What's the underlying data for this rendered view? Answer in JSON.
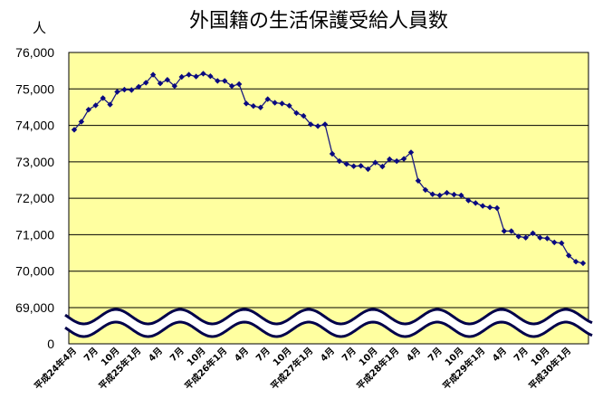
{
  "chart_data": {
    "type": "line",
    "title": "外国籍の生活保護受給人員数",
    "unit_label": "人",
    "y_tick_labels": [
      "76,000",
      "75,000",
      "74,000",
      "73,000",
      "72,000",
      "71,000",
      "70,000",
      "69,000",
      "0"
    ],
    "ylim": [
      69000,
      76000
    ],
    "axis_break": true,
    "grid": true,
    "legend": "none",
    "colors": {
      "plot_bg": "#ffffa0",
      "line": "#1a1a80",
      "marker": "#0a0a80",
      "grid": "#000000",
      "break_wave": "#00004a"
    },
    "x_tick_labels": [
      "平成24年4月",
      "7月",
      "10月",
      "平成25年1月",
      "4月",
      "7月",
      "10月",
      "平成26年1月",
      "4月",
      "7月",
      "10月",
      "平成27年1月",
      "4月",
      "7月",
      "10月",
      "平成28年1月",
      "4月",
      "7月",
      "10月",
      "平成29年1月",
      "4月",
      "7月",
      "10月",
      "平成30年1月"
    ],
    "values": [
      73880,
      74100,
      74430,
      74550,
      74750,
      74570,
      74920,
      74980,
      74970,
      75060,
      75170,
      75390,
      75150,
      75250,
      75080,
      75330,
      75390,
      75340,
      75420,
      75350,
      75220,
      75220,
      75080,
      75130,
      74600,
      74530,
      74490,
      74720,
      74620,
      74600,
      74540,
      74340,
      74260,
      74030,
      73980,
      74030,
      73220,
      73020,
      72940,
      72880,
      72890,
      72800,
      72980,
      72870,
      73070,
      73020,
      73080,
      73260,
      72480,
      72230,
      72110,
      72080,
      72150,
      72100,
      72080,
      71940,
      71870,
      71790,
      71750,
      71730,
      71100,
      71100,
      70950,
      70920,
      71040,
      70920,
      70900,
      70790,
      70770,
      70430,
      70260,
      70220
    ]
  }
}
